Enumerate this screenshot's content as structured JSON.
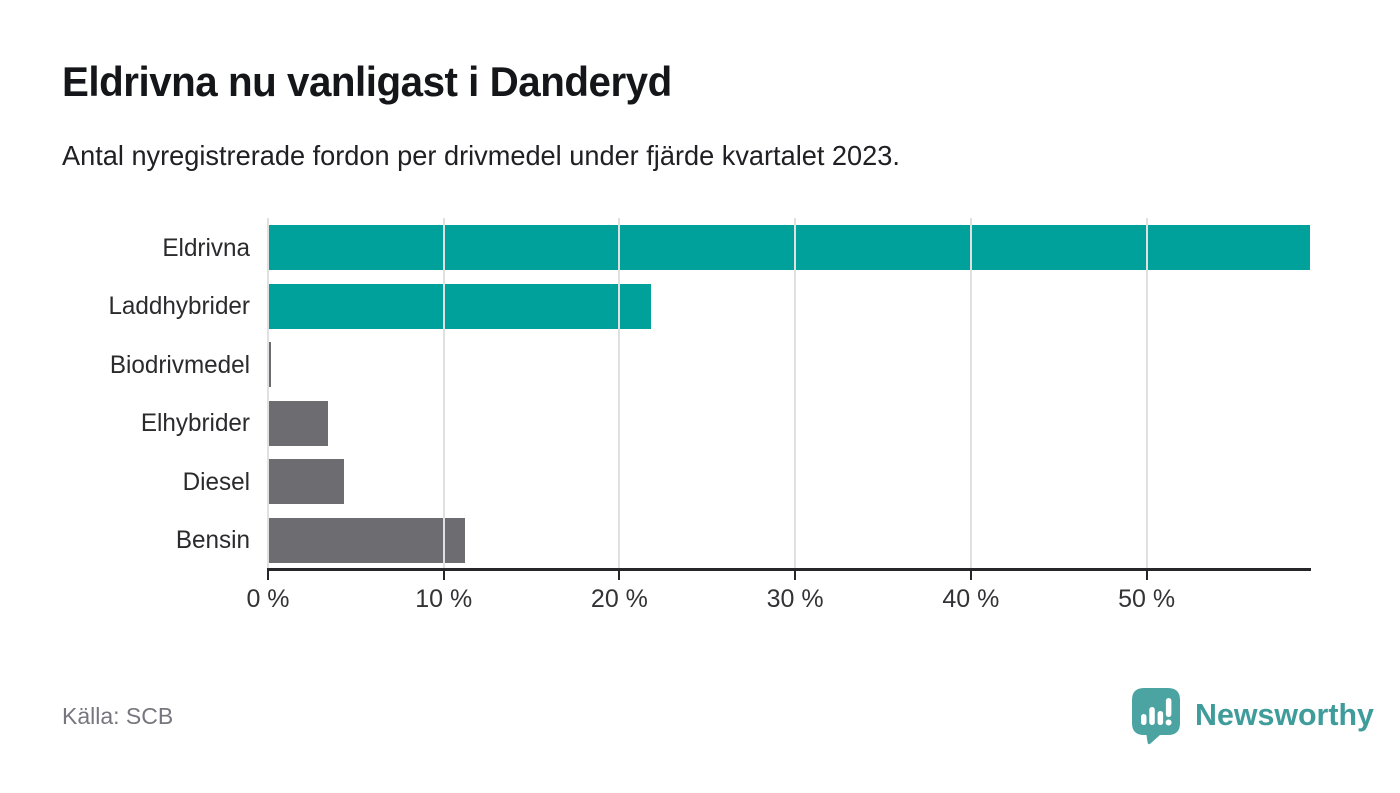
{
  "header": {
    "title": "Eldrivna nu vanligast i Danderyd",
    "subtitle": "Antal nyregistrerade fordon per drivmedel under fjärde kvartalet 2023."
  },
  "chart_data": {
    "type": "bar",
    "orientation": "horizontal",
    "title": "Eldrivna nu vanligast i Danderyd",
    "subtitle": "Antal nyregistrerade fordon per drivmedel under fjärde kvartalet 2023.",
    "categories": [
      "Eldrivna",
      "Laddhybrider",
      "Biodrivmedel",
      "Elhybrider",
      "Diesel",
      "Bensin"
    ],
    "values": [
      59.3,
      21.8,
      0.15,
      3.4,
      4.3,
      11.2
    ],
    "unit": "%",
    "xlim": [
      0,
      59.3
    ],
    "x_ticks": [
      0,
      10,
      20,
      30,
      40,
      50
    ],
    "x_tick_labels": [
      "0 %",
      "10 %",
      "20 %",
      "30 %",
      "40 %",
      "50 %"
    ],
    "grid": true,
    "legend": "none",
    "bar_colors": [
      "#00a19a",
      "#00a19a",
      "#6c6c71",
      "#6c6c71",
      "#6c6c71",
      "#6c6c71"
    ]
  },
  "colors": {
    "accent_teal": "#00a19a",
    "bar_gray": "#6c6c71",
    "gridline": "#e0e0e0",
    "axis": "#26262a",
    "title_text": "#141619",
    "muted_text": "#76767e",
    "logo_teal": "#3f9c9b",
    "logo_icon_fill": "#4ba4a2"
  },
  "footer": {
    "source_label": "Källa: SCB",
    "brand_name": "Newsworthy"
  }
}
